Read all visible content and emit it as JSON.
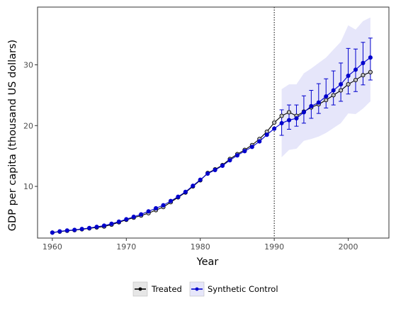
{
  "chart_data": {
    "type": "line",
    "xlabel": "Year",
    "ylabel": "GDP per capita (thousand US dollars)",
    "xlim": [
      1958,
      2005.5
    ],
    "ylim": [
      1.5,
      39.5
    ],
    "x_ticks": [
      1960,
      1970,
      1980,
      1990,
      2000
    ],
    "y_ticks": [
      10,
      20,
      30
    ],
    "grid": false,
    "legend_position": "bottom",
    "vline": 1990,
    "colors": {
      "treated": "#000000",
      "synthetic": "#0000cd",
      "band": "#e6e6fa",
      "treated_marker_fill": "#c0c0c0"
    },
    "x": [
      1960,
      1961,
      1962,
      1963,
      1964,
      1965,
      1966,
      1967,
      1968,
      1969,
      1970,
      1971,
      1972,
      1973,
      1974,
      1975,
      1976,
      1977,
      1978,
      1979,
      1980,
      1981,
      1982,
      1983,
      1984,
      1985,
      1986,
      1987,
      1988,
      1989,
      1990,
      1991,
      1992,
      1993,
      1994,
      1995,
      1996,
      1997,
      1998,
      1999,
      2000,
      2001,
      2002,
      2003
    ],
    "series": [
      {
        "name": "Treated",
        "values": [
          2.4,
          2.55,
          2.7,
          2.8,
          2.95,
          3.1,
          3.25,
          3.4,
          3.7,
          4.1,
          4.5,
          4.85,
          5.2,
          5.6,
          6.1,
          6.6,
          7.4,
          8.2,
          9.0,
          10.0,
          11.0,
          12.2,
          12.8,
          13.5,
          14.5,
          15.3,
          16.0,
          16.8,
          17.8,
          19.0,
          20.5,
          21.6,
          22.2,
          21.6,
          22.3,
          23.0,
          23.5,
          24.2,
          25.0,
          25.8,
          26.8,
          27.5,
          28.3,
          28.8
        ]
      },
      {
        "name": "Synthetic Control",
        "values": [
          2.4,
          2.6,
          2.75,
          2.85,
          3.0,
          3.15,
          3.35,
          3.55,
          3.85,
          4.2,
          4.6,
          5.0,
          5.4,
          5.9,
          6.4,
          6.9,
          7.6,
          8.3,
          9.1,
          10.1,
          11.1,
          12.1,
          12.7,
          13.4,
          14.3,
          15.1,
          15.8,
          16.5,
          17.4,
          18.5,
          19.5,
          20.4,
          20.9,
          21.2,
          22.2,
          23.2,
          23.8,
          24.8,
          25.8,
          26.8,
          28.2,
          29.2,
          30.3,
          31.2
        ]
      }
    ],
    "band": {
      "x": [
        1991,
        1992,
        1993,
        1994,
        1995,
        1996,
        1997,
        1998,
        1999,
        2000,
        2001,
        2002,
        2003
      ],
      "lower": [
        14.8,
        16.0,
        16.2,
        17.5,
        17.8,
        18.2,
        18.8,
        19.6,
        20.4,
        22.0,
        21.9,
        22.8,
        24.0
      ],
      "upper": [
        26.0,
        26.8,
        26.8,
        28.6,
        29.4,
        30.3,
        31.2,
        32.5,
        33.8,
        36.5,
        35.8,
        37.2,
        37.8
      ]
    },
    "errorbars": {
      "x": [
        1991,
        1992,
        1993,
        1994,
        1995,
        1996,
        1997,
        1998,
        1999,
        2000,
        2001,
        2002,
        2003
      ],
      "lower": [
        18.4,
        19.4,
        19.9,
        20.4,
        21.2,
        22.0,
        22.9,
        23.4,
        24.0,
        25.2,
        25.6,
        26.7,
        27.5
      ],
      "upper": [
        22.6,
        23.4,
        23.4,
        24.9,
        25.8,
        26.9,
        27.7,
        29.0,
        30.3,
        32.7,
        32.6,
        33.7,
        34.4
      ]
    }
  },
  "legend": {
    "items": [
      "Treated",
      "Synthetic Control"
    ]
  }
}
